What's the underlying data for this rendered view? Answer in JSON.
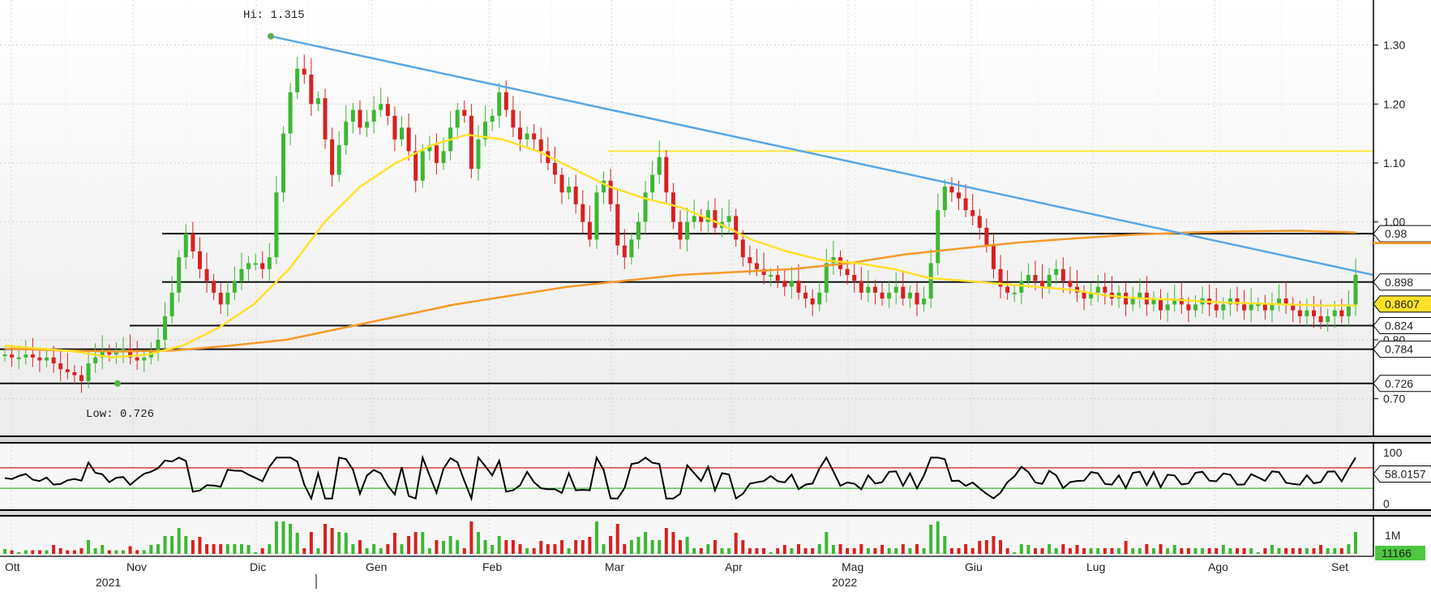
{
  "chart_data": {
    "type": "candlestick",
    "price_axis": {
      "ylim": [
        0.65,
        1.36
      ],
      "ticks": [
        "1.30",
        "1.20",
        "1.10",
        "1.00",
        "0.80",
        "0.70"
      ]
    },
    "x_axis": {
      "months": [
        "Ott",
        "Nov",
        "Dic",
        "Gen",
        "Feb",
        "Mar",
        "Apr",
        "Mag",
        "Giu",
        "Lug",
        "Ago",
        "Set"
      ],
      "years": [
        "2021",
        "2022"
      ]
    },
    "annotations": {
      "high": "Hi: 1.315",
      "low": "Low: 0.726"
    },
    "horizontal_levels": [
      {
        "label": "0.98",
        "value": 0.98
      },
      {
        "label": "0.898",
        "value": 0.898
      },
      {
        "label": "0.824",
        "value": 0.824
      },
      {
        "label": "0.784",
        "value": 0.784
      },
      {
        "label": "0.726",
        "value": 0.726
      }
    ],
    "last_price": {
      "label": "0.8607",
      "value": 0.8607
    },
    "resistance_line": 1.12,
    "trendline": {
      "from": 1.315,
      "to": 0.91
    },
    "colors": {
      "up": "#3cb833",
      "down": "#d9201f",
      "ma_short": "#ffe12b",
      "ma_long": "#f59a2a",
      "trendline": "#5aa6e6",
      "resistance": "#ffe83c",
      "rsi": "#000000",
      "rsi_upper": "#d9201f",
      "rsi_lower": "#3cb833",
      "hi_low": "#5ab04a",
      "volume_badge": "#4cc73f"
    },
    "close_series": [
      0.775,
      0.77,
      0.77,
      0.775,
      0.77,
      0.765,
      0.77,
      0.76,
      0.75,
      0.745,
      0.74,
      0.73,
      0.76,
      0.77,
      0.78,
      0.775,
      0.78,
      0.785,
      0.77,
      0.765,
      0.77,
      0.78,
      0.8,
      0.84,
      0.88,
      0.94,
      0.98,
      0.95,
      0.92,
      0.9,
      0.88,
      0.86,
      0.88,
      0.9,
      0.92,
      0.93,
      0.93,
      0.92,
      0.94,
      1.05,
      1.15,
      1.22,
      1.26,
      1.25,
      1.2,
      1.21,
      1.14,
      1.08,
      1.13,
      1.17,
      1.19,
      1.16,
      1.17,
      1.19,
      1.2,
      1.18,
      1.14,
      1.16,
      1.12,
      1.07,
      1.12,
      1.13,
      1.1,
      1.12,
      1.16,
      1.19,
      1.18,
      1.09,
      1.14,
      1.17,
      1.18,
      1.22,
      1.19,
      1.16,
      1.14,
      1.15,
      1.14,
      1.12,
      1.1,
      1.08,
      1.05,
      1.06,
      1.03,
      1.0,
      0.97,
      1.05,
      1.07,
      1.03,
      0.96,
      0.94,
      0.97,
      1.0,
      1.05,
      1.08,
      1.11,
      1.05,
      1.0,
      0.97,
      1.0,
      1.01,
      1.0,
      1.02,
      0.99,
      1.0,
      1.01,
      0.97,
      0.94,
      0.93,
      0.92,
      0.91,
      0.91,
      0.9,
      0.89,
      0.9,
      0.88,
      0.87,
      0.86,
      0.88,
      0.93,
      0.94,
      0.92,
      0.91,
      0.9,
      0.88,
      0.89,
      0.88,
      0.87,
      0.88,
      0.89,
      0.87,
      0.88,
      0.86,
      0.87,
      0.93,
      1.02,
      1.06,
      1.05,
      1.04,
      1.02,
      1.01,
      0.99,
      0.96,
      0.92,
      0.89,
      0.88,
      0.88,
      0.9,
      0.91,
      0.9,
      0.89,
      0.91,
      0.92,
      0.9,
      0.89,
      0.88,
      0.87,
      0.88,
      0.89,
      0.88,
      0.87,
      0.88,
      0.86,
      0.87,
      0.88,
      0.86,
      0.87,
      0.85,
      0.86,
      0.87,
      0.86,
      0.85,
      0.86,
      0.87,
      0.86,
      0.85,
      0.86,
      0.87,
      0.86,
      0.85,
      0.86,
      0.86,
      0.85,
      0.86,
      0.87,
      0.86,
      0.85,
      0.84,
      0.85,
      0.84,
      0.83,
      0.84,
      0.85,
      0.84,
      0.86,
      0.91
    ],
    "ma_short_series": [
      0.79,
      0.785,
      0.78,
      0.77,
      0.775,
      0.79,
      0.82,
      0.86,
      0.92,
      1.0,
      1.06,
      1.1,
      1.13,
      1.148,
      1.14,
      1.12,
      1.09,
      1.06,
      1.04,
      1.025,
      1.0,
      0.97,
      0.95,
      0.935,
      0.93,
      0.92,
      0.905,
      0.9,
      0.895,
      0.89,
      0.885,
      0.875,
      0.87,
      0.868,
      0.864,
      0.862,
      0.86,
      0.858,
      0.858
    ],
    "ma_long_series": [
      0.785,
      0.782,
      0.78,
      0.782,
      0.79,
      0.8,
      0.82,
      0.84,
      0.86,
      0.875,
      0.89,
      0.9,
      0.91,
      0.915,
      0.92,
      0.93,
      0.945,
      0.955,
      0.965,
      0.972,
      0.978,
      0.982,
      0.984,
      0.985,
      0.982
    ],
    "rsi": {
      "value_label": "58.0157",
      "ticks": [
        "100",
        "0"
      ]
    },
    "volume": {
      "tick": "1M",
      "value_label": "11166"
    }
  }
}
